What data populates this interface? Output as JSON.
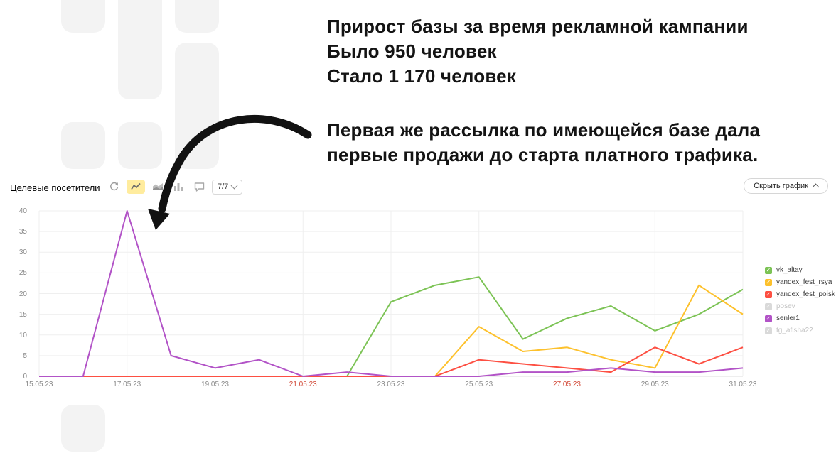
{
  "slide": {
    "title_lines": [
      "Прирост базы за время рекламной кампании",
      "Было 950 человек",
      "Стало 1 170 человек"
    ],
    "paragraph": "Первая же рассылка по имеющейся базе дала первые продажи до старта платного трафика."
  },
  "widget": {
    "label": "Целевые посетители",
    "counter": "7/7",
    "hide_button": "Скрыть график"
  },
  "chart_data": {
    "type": "line",
    "title": "Целевые посетители",
    "x_labels": [
      "15.05.23",
      "17.05.23",
      "19.05.23",
      "21.05.23",
      "23.05.23",
      "25.05.23",
      "27.05.23",
      "29.05.23",
      "31.05.23"
    ],
    "weekend_label_indexes": [
      3,
      6
    ],
    "y_ticks": [
      0,
      5,
      10,
      15,
      20,
      25,
      30,
      35,
      40
    ],
    "ylim": [
      0,
      40
    ],
    "grid": true,
    "legend_position": "right",
    "series": [
      {
        "name": "vk_altay",
        "color": "#7cc355",
        "values": [
          0,
          0,
          0,
          0,
          0,
          0,
          0,
          0,
          18,
          22,
          24,
          9,
          14,
          17,
          11,
          15,
          21
        ]
      },
      {
        "name": "yandex_fest_rsya",
        "color": "#fdc12c",
        "values": [
          0,
          0,
          0,
          0,
          0,
          0,
          0,
          0,
          0,
          0,
          12,
          6,
          7,
          4,
          2,
          22,
          15
        ]
      },
      {
        "name": "yandex_fest_poisk",
        "color": "#fd4f42",
        "values": [
          0,
          0,
          0,
          0,
          0,
          0,
          0,
          0,
          0,
          0,
          4,
          3,
          2,
          1,
          7,
          3,
          7
        ]
      },
      {
        "name": "senler1",
        "color": "#b253c7",
        "values": [
          0,
          0,
          40,
          5,
          2,
          4,
          0,
          1,
          0,
          0,
          0,
          1,
          1,
          2,
          1,
          1,
          2
        ]
      }
    ]
  },
  "legend": {
    "items": [
      {
        "label": "vk_altay",
        "color": "#7cc355",
        "enabled": true
      },
      {
        "label": "yandex_fest_rsya",
        "color": "#fdc12c",
        "enabled": true
      },
      {
        "label": "yandex_fest_poisk",
        "color": "#fd4f42",
        "enabled": true
      },
      {
        "label": "posev",
        "color": "#d9d9d9",
        "enabled": false
      },
      {
        "label": "senler1",
        "color": "#b253c7",
        "enabled": true
      },
      {
        "label": "tg_afisha22",
        "color": "#d9d9d9",
        "enabled": false
      }
    ]
  },
  "colors": {
    "weekend_label": "#d14836",
    "grid_line": "#efefef",
    "axis_line": "#dddddd",
    "selected_tool_bg": "#ffec9e"
  }
}
